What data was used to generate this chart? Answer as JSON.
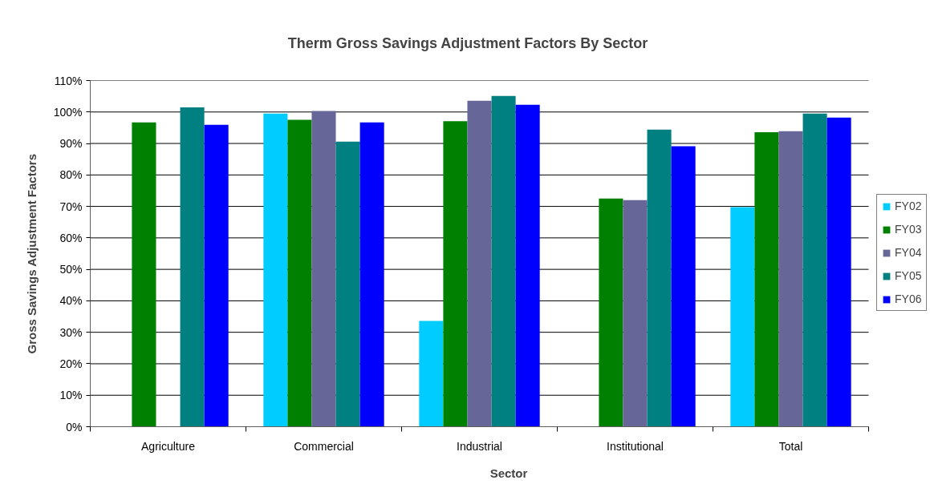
{
  "chart_data": {
    "type": "bar",
    "title": "Therm Gross Savings Adjustment Factors By Sector",
    "xlabel": "Sector",
    "ylabel": "Gross Savings Adjustment Factors",
    "categories": [
      "Agriculture",
      "Commercial",
      "Industrial",
      "Institutional",
      "Total"
    ],
    "series": [
      {
        "name": "FY02",
        "color": "#00ccff",
        "values": [
          null,
          99.5,
          33.6,
          null,
          69.8
        ]
      },
      {
        "name": "FY03",
        "color": "#008000",
        "values": [
          96.7,
          97.5,
          97.1,
          72.5,
          93.6
        ]
      },
      {
        "name": "FY04",
        "color": "#666699",
        "values": [
          null,
          100.3,
          103.6,
          72.0,
          93.9
        ]
      },
      {
        "name": "FY05",
        "color": "#008080",
        "values": [
          101.5,
          90.6,
          105.1,
          94.4,
          99.5
        ]
      },
      {
        "name": "FY06",
        "color": "#0000ff",
        "values": [
          95.9,
          96.7,
          102.3,
          89.1,
          98.2
        ]
      }
    ],
    "ylim": [
      0,
      110
    ],
    "yticks": [
      {
        "value": 0,
        "label": "0%"
      },
      {
        "value": 10,
        "label": "10%"
      },
      {
        "value": 20,
        "label": "20%"
      },
      {
        "value": 30,
        "label": "30%"
      },
      {
        "value": 40,
        "label": "40%"
      },
      {
        "value": 50,
        "label": "50%"
      },
      {
        "value": 60,
        "label": "60%"
      },
      {
        "value": 70,
        "label": "70%"
      },
      {
        "value": 80,
        "label": "80%"
      },
      {
        "value": 90,
        "label": "90%"
      },
      {
        "value": 100,
        "label": "100%"
      },
      {
        "value": 110,
        "label": "110%"
      }
    ],
    "grid": "y",
    "legend": "right"
  }
}
